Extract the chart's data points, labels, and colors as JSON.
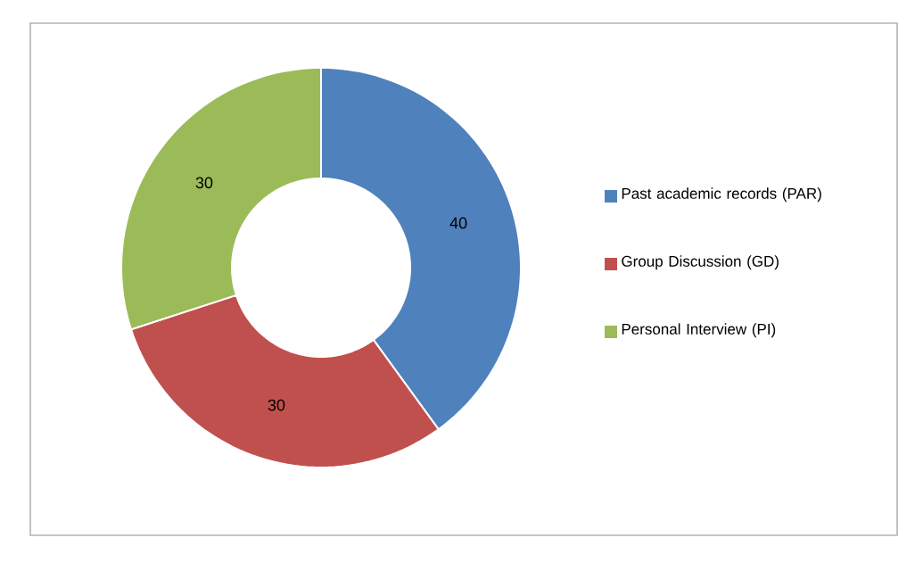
{
  "chart_data": {
    "type": "donut",
    "categories": [
      "Past academic records (PAR)",
      "Group Discussion (GD)",
      "Personal Interview (PI)"
    ],
    "values": [
      40,
      30,
      30
    ],
    "colors": [
      "#4f81bd",
      "#c0504d",
      "#9bbb59"
    ],
    "data_labels": true,
    "legend": "right"
  }
}
